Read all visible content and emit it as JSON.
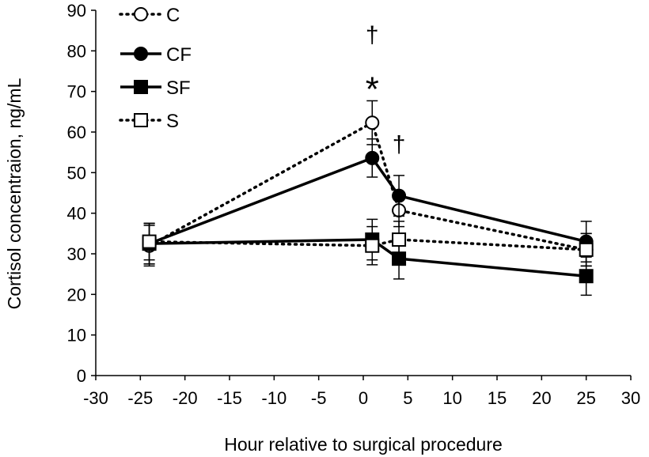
{
  "chart_data": {
    "type": "line",
    "title": "",
    "xlabel": "Hour relative to surgical procedure",
    "ylabel": "Cortisol concentraion, ng/mL",
    "xlim": [
      -30,
      30
    ],
    "ylim": [
      0,
      90
    ],
    "xticks": [
      -30,
      -25,
      -20,
      -15,
      -10,
      -5,
      0,
      5,
      10,
      15,
      20,
      25,
      30
    ],
    "yticks": [
      0,
      10,
      20,
      30,
      40,
      50,
      60,
      70,
      80,
      90
    ],
    "grid": false,
    "legend_position": "top-left",
    "x": [
      -24,
      1,
      4,
      25
    ],
    "series": [
      {
        "name": "C",
        "line": "dotted",
        "marker": "open-circle",
        "values": [
          32,
          62.3,
          40.7,
          31
        ],
        "errors": [
          5,
          5.4,
          4,
          4
        ]
      },
      {
        "name": "CF",
        "line": "solid",
        "marker": "filled-circle",
        "values": [
          32.5,
          53.6,
          44.3,
          33
        ],
        "errors": [
          5,
          4.7,
          5,
          5
        ]
      },
      {
        "name": "SF",
        "line": "solid",
        "marker": "filled-square",
        "values": [
          32.5,
          33.5,
          28.8,
          24.5
        ],
        "errors": [
          5,
          5,
          5,
          4.7
        ]
      },
      {
        "name": "S",
        "line": "dotted",
        "marker": "open-square",
        "values": [
          33,
          32,
          33.5,
          31
        ],
        "errors": [
          4.5,
          4.7,
          4.5,
          4
        ]
      }
    ],
    "annotations": [
      {
        "text": "†",
        "x": 1,
        "y": 82
      },
      {
        "text": "*",
        "x": 1,
        "y": 72
      },
      {
        "text": "†",
        "x": 4,
        "y": 55
      }
    ]
  }
}
